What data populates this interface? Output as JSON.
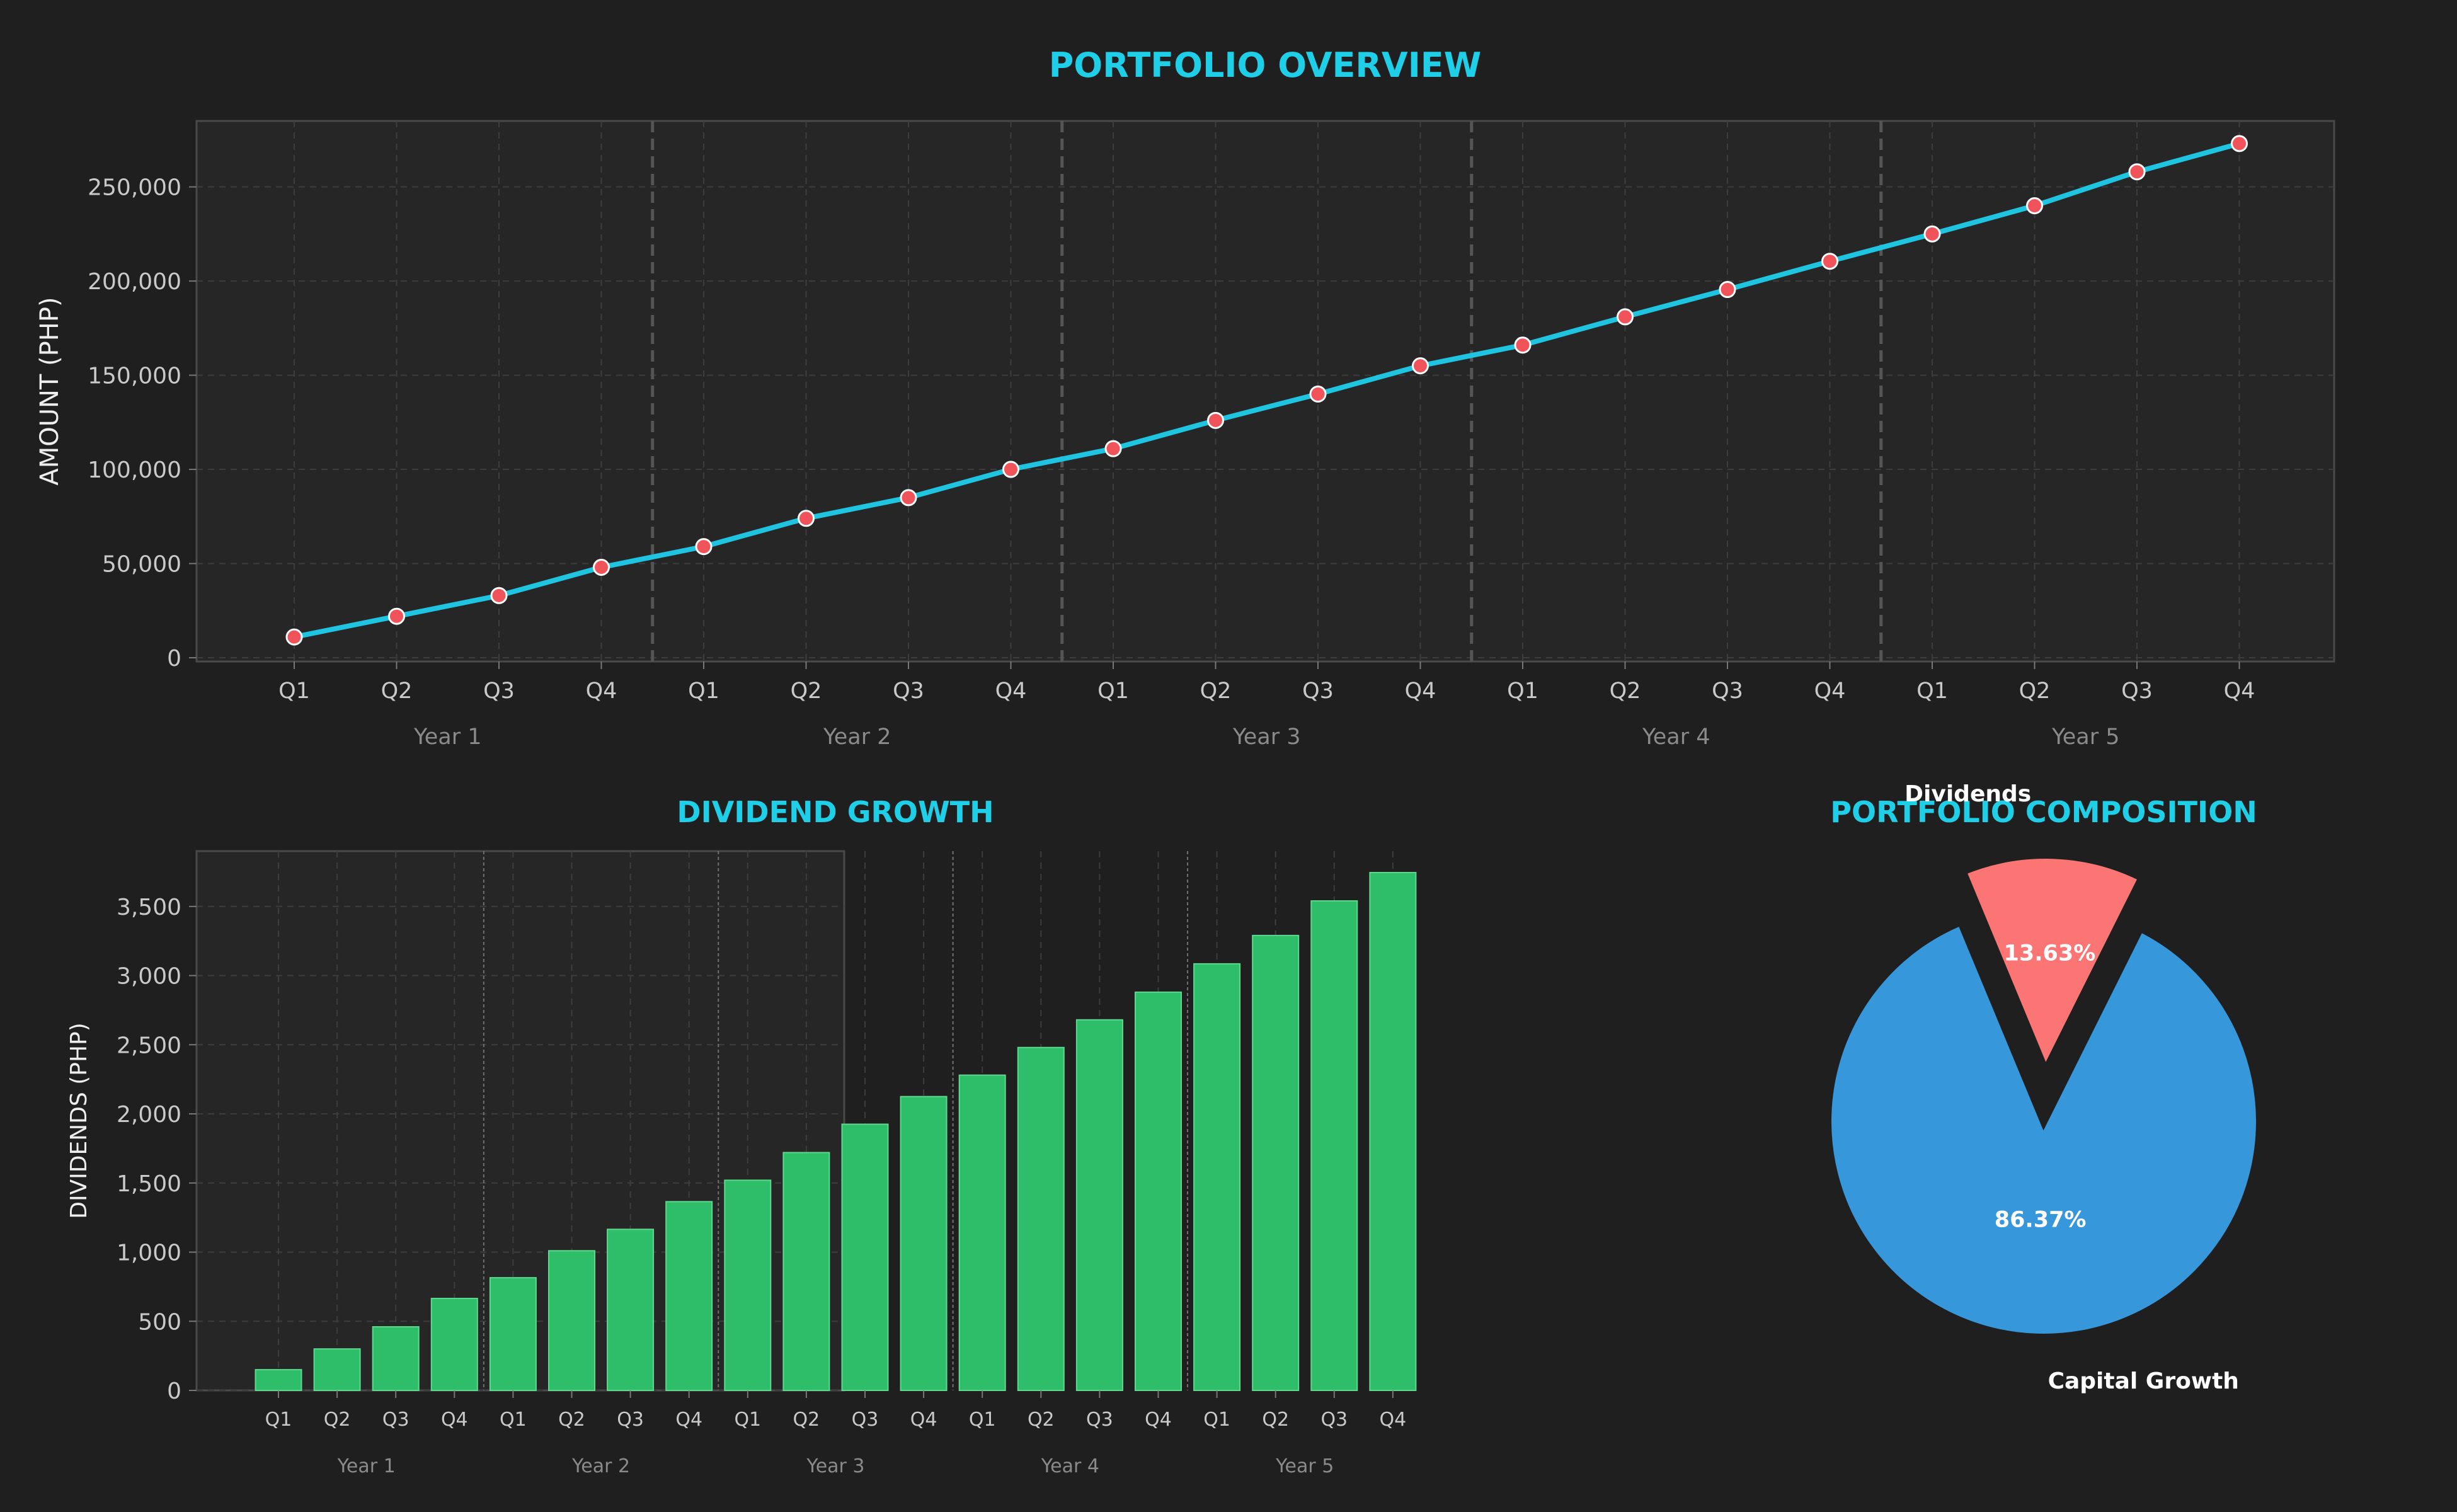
{
  "theme": {
    "background": "#1f1f1f",
    "panel": "#262626",
    "title_color": "#1fcfe8",
    "text_color": "#eeeeee",
    "tick_color": "#c9c9c9",
    "muted_color": "#8a8a8a",
    "line_color": "#1ec4e0",
    "marker_color": "#f0545a",
    "bar_color": "#2ebd68",
    "pie_capital": "#3797db",
    "pie_dividends": "#fb7575"
  },
  "chart_data": [
    {
      "type": "line",
      "title": "PORTFOLIO OVERVIEW",
      "ylabel": "AMOUNT (PHP)",
      "xlabel": "",
      "ylim": [
        0,
        285000
      ],
      "yticks": [
        0,
        50000,
        100000,
        150000,
        200000,
        250000
      ],
      "ytick_labels": [
        "0",
        "50,000",
        "100,000",
        "150,000",
        "200,000",
        "250,000"
      ],
      "categories": [
        "Q1",
        "Q2",
        "Q3",
        "Q4",
        "Q1",
        "Q2",
        "Q3",
        "Q4",
        "Q1",
        "Q2",
        "Q3",
        "Q4",
        "Q1",
        "Q2",
        "Q3",
        "Q4",
        "Q1",
        "Q2",
        "Q3",
        "Q4"
      ],
      "groups": [
        "Year 1",
        "Year 2",
        "Year 3",
        "Year 4",
        "Year 5"
      ],
      "values": [
        11000,
        22000,
        33000,
        48000,
        59000,
        74000,
        85000,
        100000,
        111000,
        126000,
        140000,
        155000,
        166000,
        181000,
        195500,
        210500,
        225000,
        240000,
        258000,
        273000
      ],
      "grid": true
    },
    {
      "type": "bar",
      "title": "DIVIDEND GROWTH",
      "ylabel": "DIVIDENDS (PHP)",
      "xlabel": "",
      "ylim": [
        0,
        3900
      ],
      "yticks": [
        0,
        500,
        1000,
        1500,
        2000,
        2500,
        3000,
        3500
      ],
      "ytick_labels": [
        "0",
        "500",
        "1,000",
        "1,500",
        "2,000",
        "2,500",
        "3,000",
        "3,500"
      ],
      "categories": [
        "Q1",
        "Q2",
        "Q3",
        "Q4",
        "Q1",
        "Q2",
        "Q3",
        "Q4",
        "Q1",
        "Q2",
        "Q3",
        "Q4",
        "Q1",
        "Q2",
        "Q3",
        "Q4",
        "Q1",
        "Q2",
        "Q3",
        "Q4"
      ],
      "groups": [
        "Year 1",
        "Year 2",
        "Year 3",
        "Year 4",
        "Year 5"
      ],
      "values": [
        150,
        300,
        460,
        665,
        815,
        1010,
        1165,
        1365,
        1520,
        1720,
        1925,
        2125,
        2280,
        2480,
        2680,
        2880,
        3085,
        3290,
        3540,
        3745
      ],
      "grid": true
    },
    {
      "type": "pie",
      "title": "PORTFOLIO COMPOSITION",
      "labels": [
        "Dividends",
        "Capital Growth"
      ],
      "values": [
        13.63,
        86.37
      ],
      "value_labels": [
        "13.63%",
        "86.37%"
      ],
      "exploded": "Dividends"
    }
  ]
}
